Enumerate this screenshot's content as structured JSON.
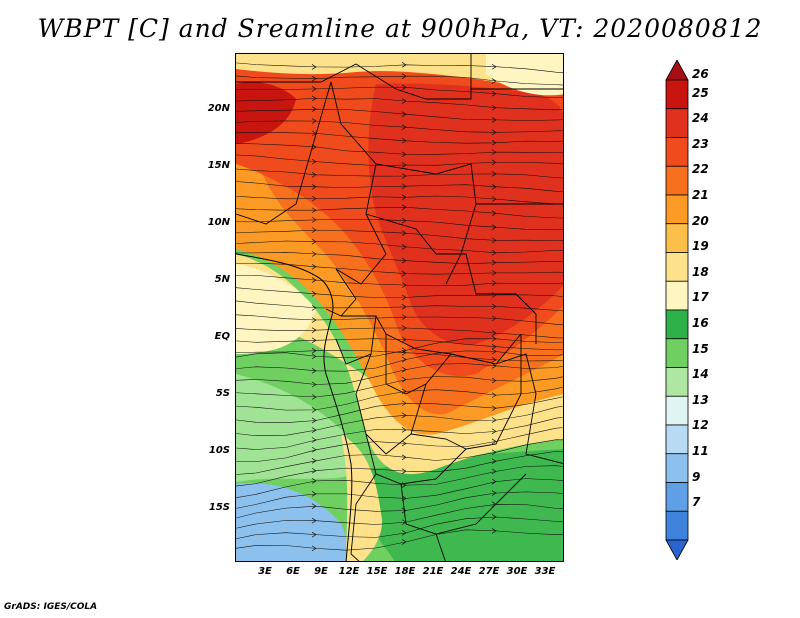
{
  "title": "WBPT [C] and Sreamline at 900hPa, VT: 2020080812",
  "credit": "GrADS: IGES/COLA",
  "lat_labels": [
    "20N",
    "15N",
    "10N",
    "5N",
    "EQ",
    "5S",
    "10S",
    "15S"
  ],
  "lon_labels": [
    "3E",
    "6E",
    "9E",
    "12E",
    "15E",
    "18E",
    "21E",
    "24E",
    "27E",
    "30E",
    "33E"
  ],
  "colorbar": {
    "labels": [
      "26",
      "25",
      "24",
      "23",
      "22",
      "21",
      "20",
      "19",
      "18",
      "17",
      "16",
      "15",
      "14",
      "13",
      "12",
      "11",
      "9",
      "7"
    ],
    "colors": [
      "#a50f15",
      "#c8150f",
      "#e0301e",
      "#ef4b1c",
      "#f7701d",
      "#fb9a24",
      "#fcc04a",
      "#fde28b",
      "#fff5c0",
      "#2fb14a",
      "#6fd061",
      "#aee7a1",
      "#e0f5f2",
      "#b8dbf3",
      "#8cc1ee",
      "#5f9fe6",
      "#3f82dc",
      "#2a64cf"
    ]
  },
  "regions": [
    {
      "name": "far-south-blue",
      "color": "#8cc1ee"
    },
    {
      "name": "south-green",
      "color": "#6fd061"
    },
    {
      "name": "west-coast-yellow",
      "color": "#fde28b"
    },
    {
      "name": "interior-orange",
      "color": "#f7701d"
    },
    {
      "name": "north-orange-red",
      "color": "#ef4b1c"
    },
    {
      "name": "core-red",
      "color": "#e0301e"
    }
  ]
}
